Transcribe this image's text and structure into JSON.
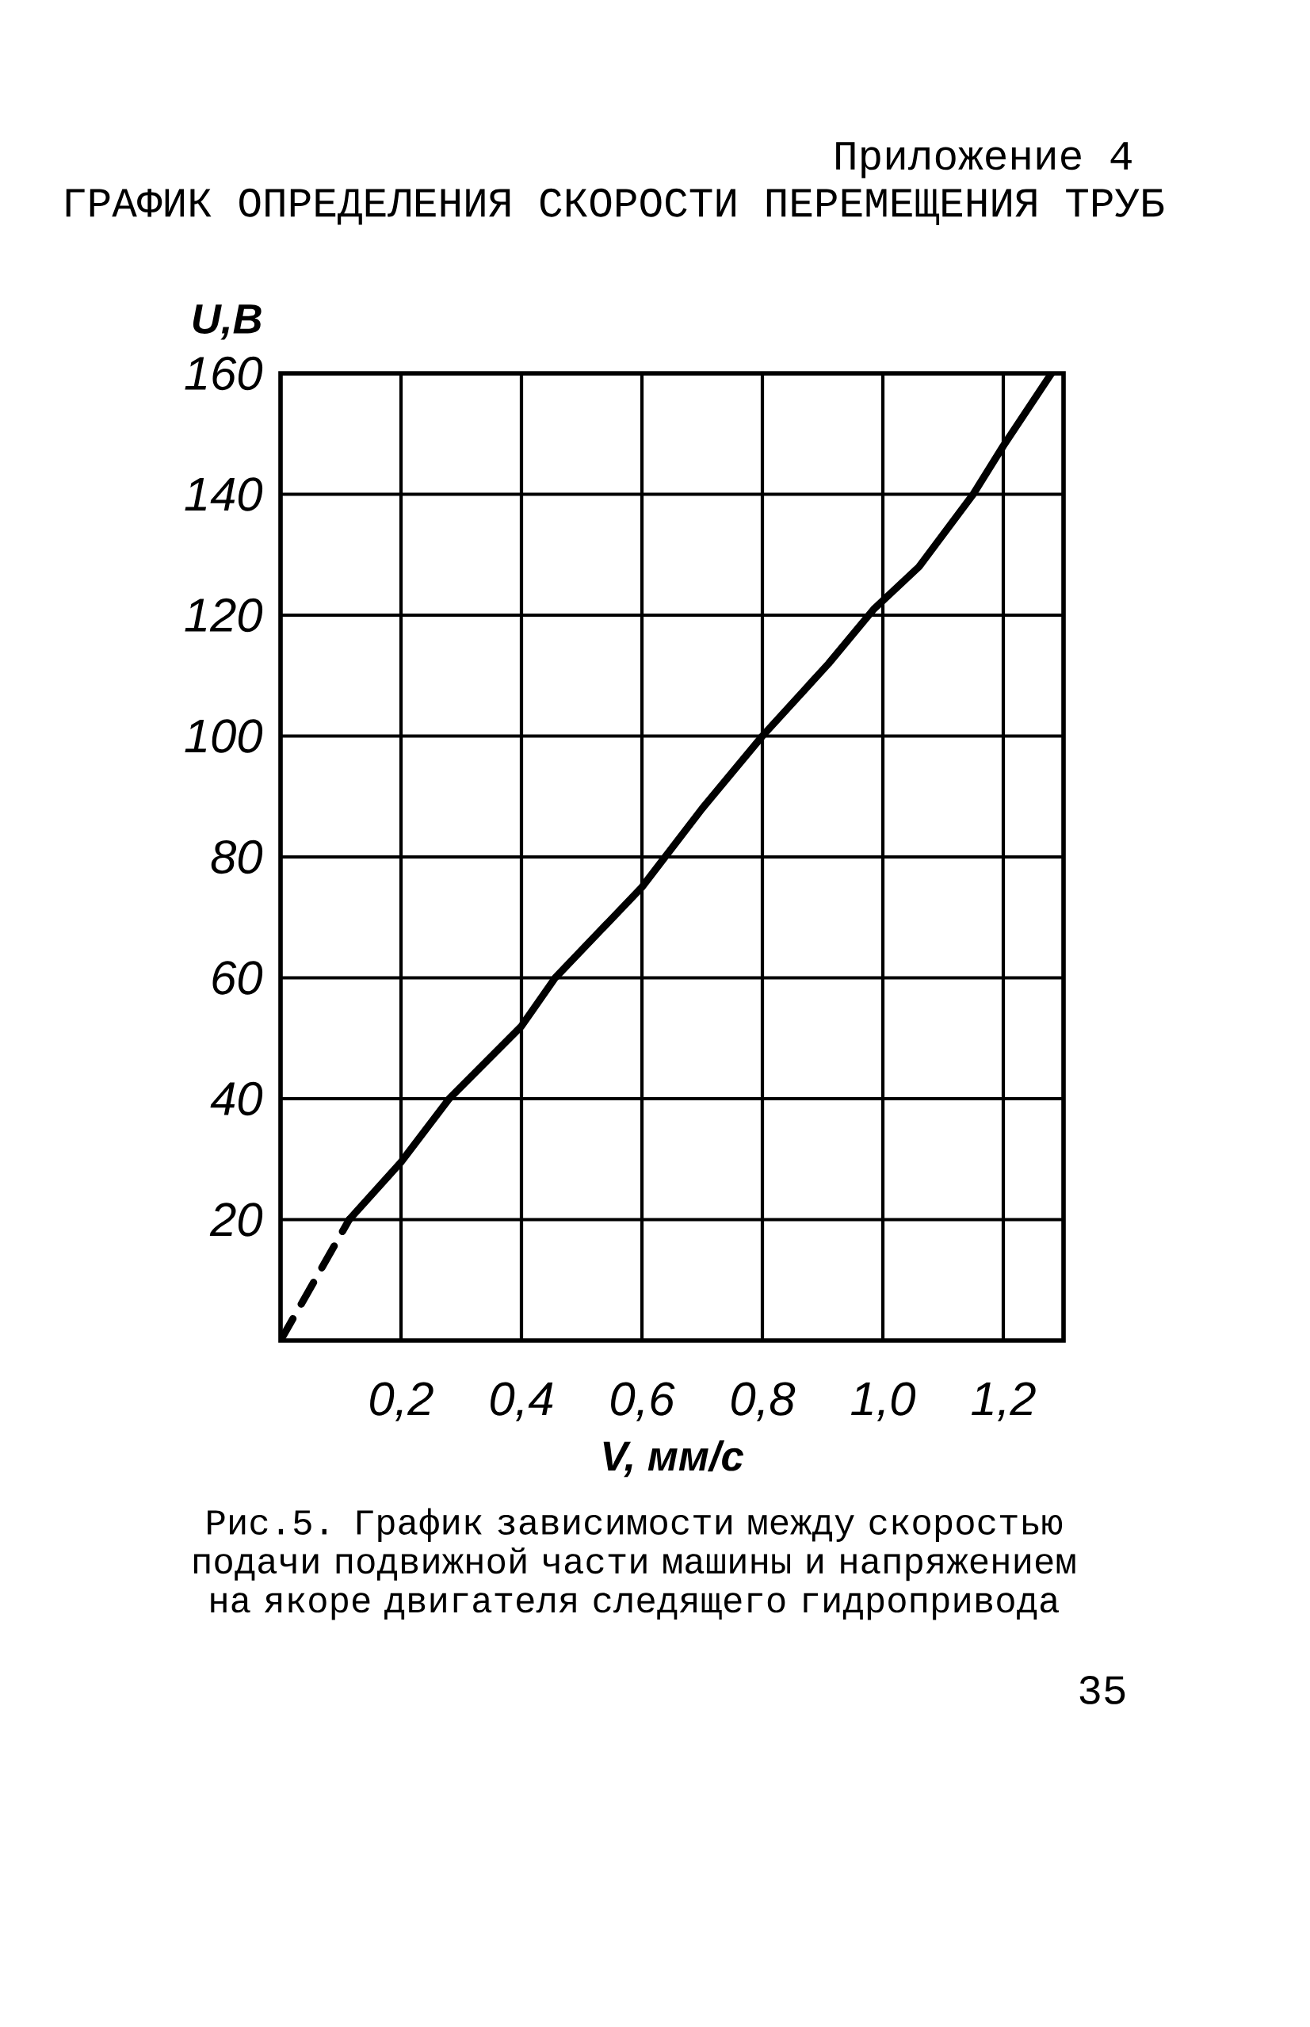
{
  "chart_data": {
    "type": "line",
    "title": "ГРАФИК ОПРЕДЕЛЕНИЯ СКОРОСТИ ПЕРЕМЕЩЕНИЯ ТРУБ",
    "xlabel": "V, мм/с",
    "ylabel": "U,В",
    "annotations": [
      "Приложение 4",
      "Рис.5. График зависимости между скоростью подачи подвижной части машины и напряжением на якоре двигателя следящего гидропривода",
      "35"
    ],
    "xlim": [
      0,
      1.3
    ],
    "ylim": [
      0,
      160
    ],
    "xticks": [
      {
        "value": 0.2,
        "label": "0,2"
      },
      {
        "value": 0.4,
        "label": "0,4"
      },
      {
        "value": 0.6,
        "label": "0,6"
      },
      {
        "value": 0.8,
        "label": "0,8"
      },
      {
        "value": 1.0,
        "label": "1,0"
      },
      {
        "value": 1.2,
        "label": "1,2"
      }
    ],
    "yticks": [
      20,
      40,
      60,
      80,
      100,
      120,
      140,
      160
    ],
    "grid": true,
    "marker": "none",
    "color": "#000000",
    "series": [
      {
        "line_style": "dashed",
        "x": [
          0,
          0.114
        ],
        "values": [
          0,
          20
        ]
      },
      {
        "line_style": "solid",
        "x": [
          0.114,
          0.2,
          0.28,
          0.4,
          0.456,
          0.6,
          0.7,
          0.8,
          0.91,
          0.985,
          1.06,
          1.15,
          1.2,
          1.28
        ],
        "values": [
          20,
          29.5,
          40,
          52,
          60,
          75,
          88,
          100,
          112,
          121,
          128,
          140,
          148,
          160
        ]
      }
    ]
  }
}
